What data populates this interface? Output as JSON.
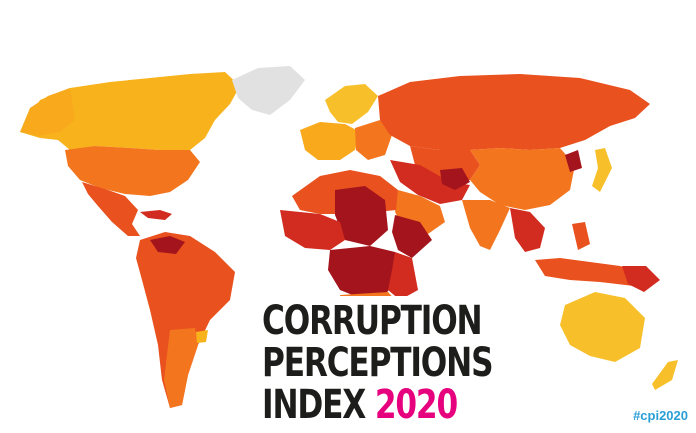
{
  "title": {
    "line1": "CORRUPTION",
    "line2": "PERCEPTIONS",
    "line3_word": "INDEX",
    "line3_year": "2020"
  },
  "hashtag": "#cpi2020",
  "palette": {
    "very_clean": "#f7c02a",
    "clean": "#f8a91c",
    "moderate": "#f3761f",
    "high": "#e9511e",
    "very_high": "#d22b1f",
    "highest": "#a4141c",
    "no_data": "#e1e1e1",
    "accent_year": "#e6007e",
    "hashtag": "#2a9fd6"
  }
}
